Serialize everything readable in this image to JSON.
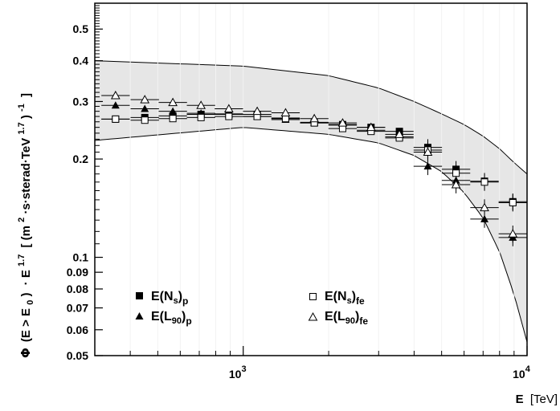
{
  "chart_data": {
    "type": "scatter",
    "x_scale": "log",
    "y_scale": "log",
    "xlim": [
      300,
      10000
    ],
    "ylim": [
      0.05,
      0.6
    ],
    "xlabel": {
      "main": "E",
      "unit": "[TeV]"
    },
    "ylabel": {
      "phi": "Φ",
      "cond": "(E > E",
      "cond_sub": "0",
      "close": ")",
      "mult": "· E",
      "exp": "1.7",
      "bracket_open": "[ (m",
      "m_exp": "2",
      "units_mid": "·s·sterad·TeV",
      "tev_exp": "1.7",
      "paren_close": ")",
      "neg_exp": "-1",
      "bracket_close": "]"
    },
    "x_ticks": [
      {
        "value": 1000,
        "base": "10",
        "exp": "3"
      },
      {
        "value": 10000,
        "base": "10",
        "exp": "4"
      }
    ],
    "y_ticks": [
      {
        "value": 0.05,
        "label": "0.05"
      },
      {
        "value": 0.06,
        "label": "0.06"
      },
      {
        "value": 0.07,
        "label": "0.07"
      },
      {
        "value": 0.08,
        "label": "0.08"
      },
      {
        "value": 0.09,
        "label": "0.09"
      },
      {
        "value": 0.1,
        "label": "0.1"
      },
      {
        "value": 0.2,
        "label": "0.2"
      },
      {
        "value": 0.3,
        "label": "0.3"
      },
      {
        "value": 0.4,
        "label": "0.4"
      },
      {
        "value": 0.5,
        "label": "0.5"
      }
    ],
    "band": {
      "color": "#e6e6e6",
      "x": [
        300,
        1000,
        2000,
        3000,
        4000,
        5000,
        6000,
        7000,
        8000,
        9000,
        10000
      ],
      "upper": [
        0.4,
        0.385,
        0.36,
        0.33,
        0.3,
        0.275,
        0.255,
        0.235,
        0.215,
        0.195,
        0.18
      ],
      "lower": [
        0.228,
        0.25,
        0.238,
        0.224,
        0.205,
        0.183,
        0.158,
        0.132,
        0.104,
        0.077,
        0.055
      ]
    },
    "series": [
      {
        "key": "ns_p",
        "marker": "square-filled",
        "legend": {
          "main": "E(N",
          "sub1": "s",
          "close": ")",
          "sub2": "p"
        },
        "points": [
          {
            "x": 355,
            "y": 0.265
          },
          {
            "x": 450,
            "y": 0.268
          },
          {
            "x": 565,
            "y": 0.271
          },
          {
            "x": 710,
            "y": 0.274
          },
          {
            "x": 890,
            "y": 0.275
          },
          {
            "x": 1120,
            "y": 0.274
          },
          {
            "x": 1410,
            "y": 0.267
          },
          {
            "x": 1780,
            "y": 0.258
          },
          {
            "x": 2240,
            "y": 0.255
          },
          {
            "x": 2820,
            "y": 0.25
          },
          {
            "x": 3550,
            "y": 0.243
          },
          {
            "x": 4470,
            "y": 0.217
          },
          {
            "x": 5620,
            "y": 0.186
          },
          {
            "x": 7080,
            "y": 0.171
          },
          {
            "x": 8910,
            "y": 0.148
          }
        ]
      },
      {
        "key": "l90_p",
        "marker": "triangle-filled",
        "legend": {
          "main": "E(L",
          "sub1": "90",
          "close": ")",
          "sub2": "p"
        },
        "points": [
          {
            "x": 355,
            "y": 0.292
          },
          {
            "x": 450,
            "y": 0.285
          },
          {
            "x": 565,
            "y": 0.28
          },
          {
            "x": 710,
            "y": 0.276
          },
          {
            "x": 890,
            "y": 0.274
          },
          {
            "x": 1120,
            "y": 0.27
          },
          {
            "x": 1410,
            "y": 0.264
          },
          {
            "x": 1780,
            "y": 0.259
          },
          {
            "x": 2240,
            "y": 0.254
          },
          {
            "x": 2820,
            "y": 0.245
          },
          {
            "x": 3550,
            "y": 0.234
          },
          {
            "x": 4470,
            "y": 0.19
          },
          {
            "x": 5620,
            "y": 0.172
          },
          {
            "x": 7080,
            "y": 0.131
          },
          {
            "x": 8910,
            "y": 0.115
          }
        ]
      },
      {
        "key": "ns_fe",
        "marker": "square-open",
        "legend": {
          "main": "E(N",
          "sub1": "s",
          "close": ")",
          "sub2": "fe"
        },
        "points": [
          {
            "x": 355,
            "y": 0.265
          },
          {
            "x": 450,
            "y": 0.263
          },
          {
            "x": 565,
            "y": 0.266
          },
          {
            "x": 710,
            "y": 0.268
          },
          {
            "x": 890,
            "y": 0.27
          },
          {
            "x": 1120,
            "y": 0.27
          },
          {
            "x": 1410,
            "y": 0.266
          },
          {
            "x": 1780,
            "y": 0.258
          },
          {
            "x": 2240,
            "y": 0.248
          },
          {
            "x": 2820,
            "y": 0.243
          },
          {
            "x": 3550,
            "y": 0.232
          },
          {
            "x": 4470,
            "y": 0.213
          },
          {
            "x": 5620,
            "y": 0.181
          },
          {
            "x": 7080,
            "y": 0.17
          },
          {
            "x": 8910,
            "y": 0.147
          }
        ]
      },
      {
        "key": "l90_fe",
        "marker": "triangle-open",
        "legend": {
          "main": "E(L",
          "sub1": "90",
          "close": ")",
          "sub2": "fe"
        },
        "points": [
          {
            "x": 355,
            "y": 0.313
          },
          {
            "x": 450,
            "y": 0.304
          },
          {
            "x": 565,
            "y": 0.298
          },
          {
            "x": 710,
            "y": 0.292
          },
          {
            "x": 890,
            "y": 0.285
          },
          {
            "x": 1120,
            "y": 0.28
          },
          {
            "x": 1410,
            "y": 0.277
          },
          {
            "x": 1780,
            "y": 0.266
          },
          {
            "x": 2240,
            "y": 0.258
          },
          {
            "x": 2820,
            "y": 0.25
          },
          {
            "x": 3550,
            "y": 0.238
          },
          {
            "x": 4470,
            "y": 0.21
          },
          {
            "x": 5620,
            "y": 0.167
          },
          {
            "x": 7080,
            "y": 0.142
          },
          {
            "x": 8910,
            "y": 0.118
          }
        ]
      }
    ]
  }
}
